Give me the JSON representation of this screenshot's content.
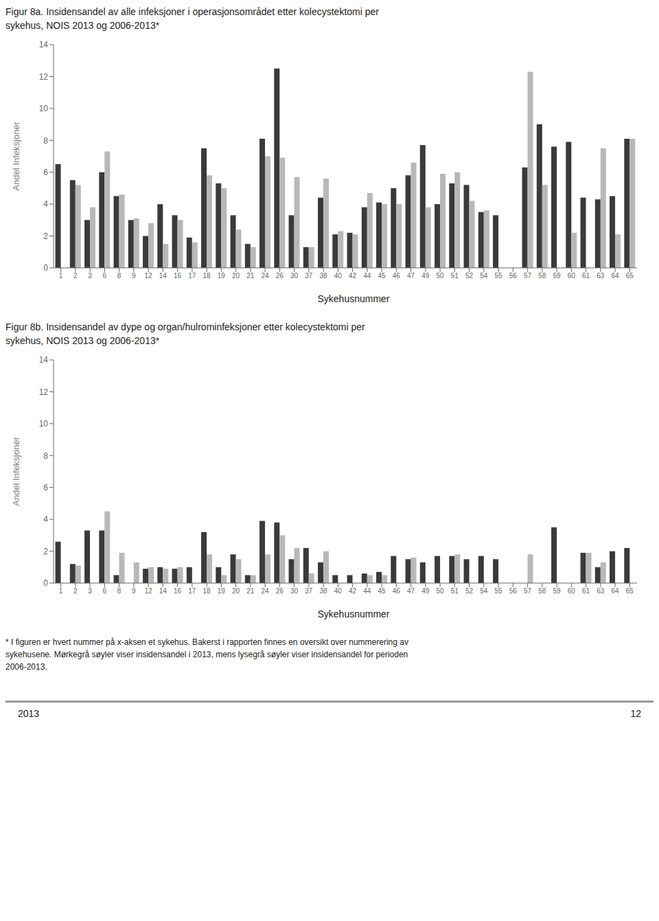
{
  "chart_data": [
    {
      "type": "bar",
      "title": "Figur 8a.  Insidensandel av alle infeksjoner i operasjonsområdet etter kolecystektomi per\nsykehus, NOIS 2013 og 2006-2013*",
      "x_label": "Sykehusnummer",
      "y_label": "Andel Infeksjoner",
      "categories": [
        "1",
        "2",
        "3",
        "6",
        "8",
        "9",
        "12",
        "14",
        "16",
        "17",
        "18",
        "19",
        "20",
        "21",
        "24",
        "26",
        "30",
        "37",
        "38",
        "40",
        "42",
        "44",
        "45",
        "46",
        "47",
        "49",
        "50",
        "51",
        "52",
        "54",
        "55",
        "56",
        "57",
        "58",
        "59",
        "60",
        "61",
        "63",
        "64",
        "65"
      ],
      "series": [
        {
          "color": "#3a3a3a",
          "values": [
            6.5,
            5.5,
            3.0,
            6.0,
            4.5,
            3.0,
            2.0,
            4.0,
            3.3,
            1.9,
            7.5,
            5.3,
            3.3,
            1.5,
            8.1,
            12.5,
            3.3,
            1.3,
            4.4,
            2.1,
            2.2,
            3.8,
            4.1,
            5.0,
            5.8,
            7.7,
            4.0,
            5.3,
            5.2,
            3.5,
            3.3,
            0.0,
            6.3,
            9.0,
            7.6,
            7.9,
            4.4,
            4.3,
            4.5,
            8.1
          ]
        },
        {
          "color": "#b8b8b8",
          "values": [
            0.0,
            5.2,
            3.8,
            7.3,
            4.6,
            3.1,
            2.8,
            1.5,
            3.0,
            1.6,
            5.8,
            5.0,
            2.4,
            1.3,
            7.0,
            6.9,
            5.7,
            1.3,
            5.6,
            2.3,
            2.1,
            4.7,
            4.0,
            4.0,
            6.6,
            3.8,
            5.9,
            6.0,
            4.2,
            3.6,
            0.0,
            0.0,
            12.3,
            5.2,
            0.0,
            2.2,
            0.0,
            7.5,
            2.1,
            8.1
          ]
        }
      ],
      "ylim": [
        0,
        14
      ],
      "yticks": [
        0,
        2,
        4,
        6,
        8,
        10,
        12,
        14
      ],
      "grid": false
    },
    {
      "type": "bar",
      "title": "Figur 8b.  Insidensandel av dype og organ/hulrominfeksjoner etter kolecystektomi per\nsykehus, NOIS 2013 og 2006-2013*",
      "x_label": "Sykehusnummer",
      "y_label": "Andel Infeksjoner",
      "categories": [
        "1",
        "2",
        "3",
        "6",
        "8",
        "9",
        "12",
        "14",
        "16",
        "17",
        "18",
        "19",
        "20",
        "21",
        "24",
        "26",
        "30",
        "37",
        "38",
        "40",
        "42",
        "44",
        "45",
        "46",
        "47",
        "49",
        "50",
        "51",
        "52",
        "54",
        "55",
        "56",
        "57",
        "58",
        "59",
        "60",
        "61",
        "63",
        "64",
        "65"
      ],
      "series": [
        {
          "color": "#3a3a3a",
          "values": [
            2.6,
            1.2,
            3.3,
            3.3,
            0.5,
            0.0,
            0.9,
            1.0,
            0.9,
            1.0,
            3.2,
            1.0,
            1.8,
            0.5,
            3.9,
            3.8,
            1.5,
            2.2,
            1.3,
            0.5,
            0.5,
            0.6,
            0.7,
            1.7,
            1.5,
            1.3,
            1.7,
            1.7,
            1.5,
            1.7,
            1.5,
            0.0,
            0.0,
            0.0,
            3.5,
            0.0,
            1.9,
            1.0,
            2.0,
            2.2
          ]
        },
        {
          "color": "#b8b8b8",
          "values": [
            0.0,
            1.1,
            0.0,
            4.5,
            1.9,
            1.3,
            1.0,
            0.9,
            1.0,
            0.0,
            1.8,
            0.5,
            1.5,
            0.5,
            1.8,
            3.0,
            2.2,
            0.6,
            2.0,
            0.0,
            0.0,
            0.5,
            0.5,
            0.0,
            1.6,
            0.0,
            0.0,
            1.8,
            0.0,
            0.0,
            0.0,
            0.0,
            1.8,
            0.0,
            0.0,
            0.0,
            1.9,
            1.3,
            0.0,
            0.0
          ]
        }
      ],
      "ylim": [
        0,
        14
      ],
      "yticks": [
        0,
        2,
        4,
        6,
        8,
        10,
        12,
        14
      ],
      "grid": false,
      "annotations": [
        "* I figuren er hvert nummer på x-aksen et sykehus. Bakerst i rapporten finnes en oversikt over nummerering av\nsykehusene.  Mørkegrå søyler viser insidensandel i 2013, mens lysegrå søyler viser insidensandel for perioden\n2006-2013.",
        "2013",
        "12"
      ]
    }
  ]
}
